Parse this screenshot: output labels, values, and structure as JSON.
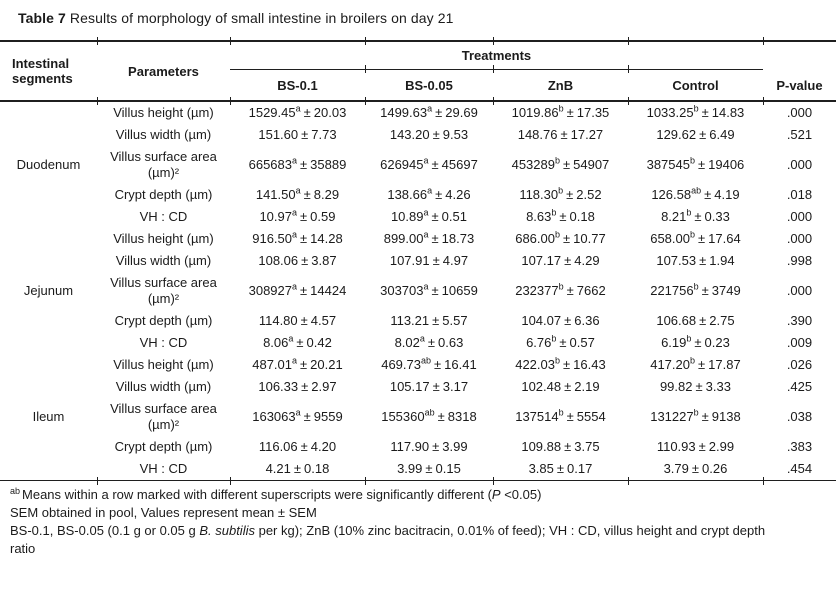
{
  "symbols": {
    "pm": "±"
  },
  "title": {
    "bold": "Table 7",
    "rest": " Results of morphology of small intestine in broilers on day 21"
  },
  "header": {
    "segments_label": "Intestinal segments",
    "parameters_label": "Parameters",
    "treatments_label": "Treatments",
    "treatment_columns": [
      "BS-0.1",
      "BS-0.05",
      "ZnB",
      "Control"
    ],
    "p_value_label": "P-value"
  },
  "body": {
    "segments": [
      {
        "name": "Duodenum",
        "rows": [
          {
            "parameter": "Villus height (µm)",
            "cells": [
              {
                "mean": "1529.45",
                "sup": "a",
                "sem": "20.03"
              },
              {
                "mean": "1499.63",
                "sup": "a",
                "sem": "29.69"
              },
              {
                "mean": "1019.86",
                "sup": "b",
                "sem": "17.35"
              },
              {
                "mean": "1033.25",
                "sup": "b",
                "sem": "14.83"
              }
            ],
            "p": ".000"
          },
          {
            "parameter": "Villus width (µm)",
            "cells": [
              {
                "mean": "151.60",
                "sup": "",
                "sem": "7.73"
              },
              {
                "mean": "143.20",
                "sup": "",
                "sem": "9.53"
              },
              {
                "mean": "148.76",
                "sup": "",
                "sem": "17.27"
              },
              {
                "mean": "129.62",
                "sup": "",
                "sem": "6.49"
              }
            ],
            "p": ".521"
          },
          {
            "parameter": "Villus surface area (µm)²",
            "cells": [
              {
                "mean": "665683",
                "sup": "a",
                "sem": "35889"
              },
              {
                "mean": "626945",
                "sup": "a",
                "sem": "45697"
              },
              {
                "mean": "453289",
                "sup": "b",
                "sem": "54907"
              },
              {
                "mean": "387545",
                "sup": "b",
                "sem": "19406"
              }
            ],
            "p": ".000"
          },
          {
            "parameter": "Crypt depth (µm)",
            "cells": [
              {
                "mean": "141.50",
                "sup": "a",
                "sem": "8.29"
              },
              {
                "mean": "138.66",
                "sup": "a",
                "sem": "4.26"
              },
              {
                "mean": "118.30",
                "sup": "b",
                "sem": "2.52"
              },
              {
                "mean": "126.58",
                "sup": "ab",
                "sem": "4.19"
              }
            ],
            "p": ".018"
          },
          {
            "parameter": "VH : CD",
            "cells": [
              {
                "mean": "10.97",
                "sup": "a",
                "sem": "0.59"
              },
              {
                "mean": "10.89",
                "sup": "a",
                "sem": "0.51"
              },
              {
                "mean": "8.63",
                "sup": "b",
                "sem": "0.18"
              },
              {
                "mean": "8.21",
                "sup": "b",
                "sem": "0.33"
              }
            ],
            "p": ".000"
          }
        ]
      },
      {
        "name": "Jejunum",
        "rows": [
          {
            "parameter": "Villus height (µm)",
            "cells": [
              {
                "mean": "916.50",
                "sup": "a",
                "sem": "14.28"
              },
              {
                "mean": "899.00",
                "sup": "a",
                "sem": "18.73"
              },
              {
                "mean": "686.00",
                "sup": "b",
                "sem": "10.77"
              },
              {
                "mean": "658.00",
                "sup": "b",
                "sem": "17.64"
              }
            ],
            "p": ".000"
          },
          {
            "parameter": "Villus width (µm)",
            "cells": [
              {
                "mean": "108.06",
                "sup": "",
                "sem": "3.87"
              },
              {
                "mean": "107.91",
                "sup": "",
                "sem": "4.97"
              },
              {
                "mean": "107.17",
                "sup": "",
                "sem": "4.29"
              },
              {
                "mean": "107.53",
                "sup": "",
                "sem": "1.94"
              }
            ],
            "p": ".998"
          },
          {
            "parameter": "Villus surface area (µm)²",
            "cells": [
              {
                "mean": "308927",
                "sup": "a",
                "sem": "14424"
              },
              {
                "mean": "303703",
                "sup": "a",
                "sem": "10659"
              },
              {
                "mean": "232377",
                "sup": "b",
                "sem": "7662"
              },
              {
                "mean": "221756",
                "sup": "b",
                "sem": "3749"
              }
            ],
            "p": ".000"
          },
          {
            "parameter": "Crypt depth (µm)",
            "cells": [
              {
                "mean": "114.80",
                "sup": "",
                "sem": "4.57"
              },
              {
                "mean": "113.21",
                "sup": "",
                "sem": "5.57"
              },
              {
                "mean": "104.07",
                "sup": "",
                "sem": "6.36"
              },
              {
                "mean": "106.68",
                "sup": "",
                "sem": "2.75"
              }
            ],
            "p": ".390"
          },
          {
            "parameter": "VH : CD",
            "cells": [
              {
                "mean": "8.06",
                "sup": "a",
                "sem": "0.42"
              },
              {
                "mean": "8.02",
                "sup": "a",
                "sem": "0.63"
              },
              {
                "mean": "6.76",
                "sup": "b",
                "sem": "0.57"
              },
              {
                "mean": "6.19",
                "sup": "b",
                "sem": "0.23"
              }
            ],
            "p": ".009"
          }
        ]
      },
      {
        "name": "Ileum",
        "rows": [
          {
            "parameter": "Villus height (µm)",
            "cells": [
              {
                "mean": "487.01",
                "sup": "a",
                "sem": "20.21"
              },
              {
                "mean": "469.73",
                "sup": "ab",
                "sem": "16.41"
              },
              {
                "mean": "422.03",
                "sup": "b",
                "sem": "16.43"
              },
              {
                "mean": "417.20",
                "sup": "b",
                "sem": "17.87"
              }
            ],
            "p": ".026"
          },
          {
            "parameter": "Villus width (µm)",
            "cells": [
              {
                "mean": "106.33",
                "sup": "",
                "sem": "2.97"
              },
              {
                "mean": "105.17",
                "sup": "",
                "sem": "3.17"
              },
              {
                "mean": "102.48",
                "sup": "",
                "sem": "2.19"
              },
              {
                "mean": "99.82",
                "sup": "",
                "sem": "3.33"
              }
            ],
            "p": ".425"
          },
          {
            "parameter": "Villus surface area (µm)²",
            "cells": [
              {
                "mean": "163063",
                "sup": "a",
                "sem": "9559"
              },
              {
                "mean": "155360",
                "sup": "ab",
                "sem": "8318"
              },
              {
                "mean": "137514",
                "sup": "b",
                "sem": "5554"
              },
              {
                "mean": "131227",
                "sup": "b",
                "sem": "9138"
              }
            ],
            "p": ".038"
          },
          {
            "parameter": "Crypt depth (µm)",
            "cells": [
              {
                "mean": "116.06",
                "sup": "",
                "sem": "4.20"
              },
              {
                "mean": "117.90",
                "sup": "",
                "sem": "3.99"
              },
              {
                "mean": "109.88",
                "sup": "",
                "sem": "3.75"
              },
              {
                "mean": "110.93",
                "sup": "",
                "sem": "2.99"
              }
            ],
            "p": ".383"
          },
          {
            "parameter": "VH : CD",
            "cells": [
              {
                "mean": "4.21",
                "sup": "",
                "sem": "0.18"
              },
              {
                "mean": "3.99",
                "sup": "",
                "sem": "0.15"
              },
              {
                "mean": "3.85",
                "sup": "",
                "sem": "0.17"
              },
              {
                "mean": "3.79",
                "sup": "",
                "sem": "0.26"
              }
            ],
            "p": ".454"
          }
        ]
      }
    ]
  },
  "footnotes": {
    "note1": {
      "sup": "ab",
      "pre": "Means within a row marked with different superscripts were significantly different (",
      "p_italic": "P",
      "post": " <0.05)"
    },
    "note2": "SEM obtained in pool, Values represent mean ± SEM",
    "note3": {
      "pre": "BS-0.1, BS-0.05 (0.1 g or 0.05 g ",
      "italic": "B. subtilis",
      "post": " per kg); ZnB (10% zinc bacitracin, 0.01% of feed); VH : CD, villus height and crypt depth ratio"
    }
  }
}
